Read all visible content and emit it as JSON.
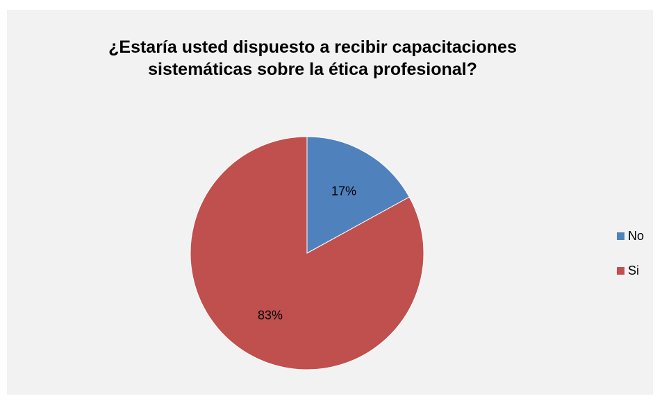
{
  "chart_data": {
    "type": "pie",
    "title_lines": [
      "¿Estaría usted dispuesto a recibir capacitaciones",
      "sistemáticas sobre la ética profesional?"
    ],
    "categories": [
      "No",
      "Si"
    ],
    "values": [
      17,
      83
    ],
    "labels": [
      "17%",
      "83%"
    ],
    "colors": [
      "#4f81bd",
      "#c0504d"
    ],
    "legend_position": "right"
  }
}
